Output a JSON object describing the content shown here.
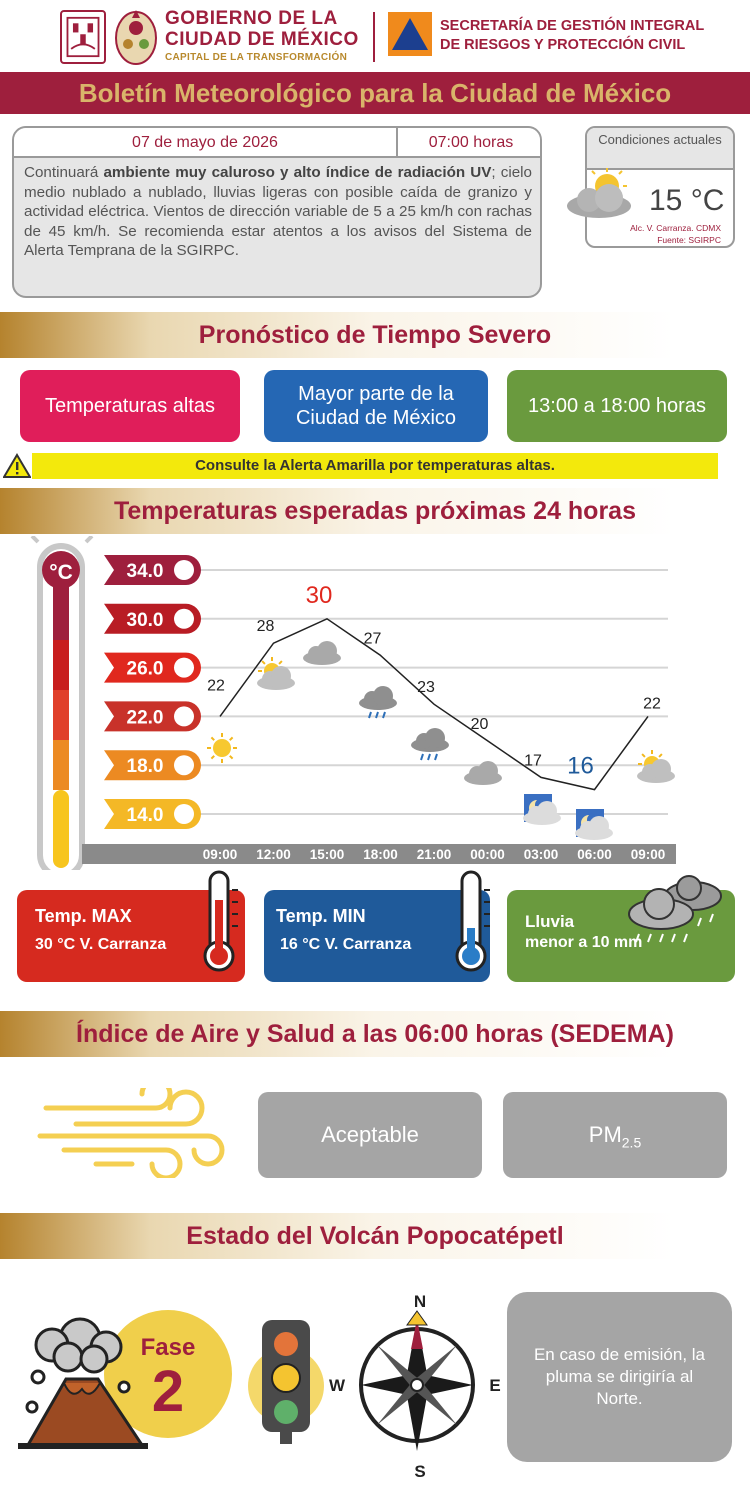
{
  "header": {
    "gov_line1": "GOBIERNO DE LA",
    "gov_line2": "CIUDAD DE MÉXICO",
    "gov_tagline": "CAPITAL DE LA TRANSFORMACIÓN",
    "sec_line1": "SECRETARÍA DE GESTIÓN INTEGRAL",
    "sec_line2": "DE RIESGOS Y PROTECCIÓN CIVIL"
  },
  "title": "Boletín Meteorológico para la Ciudad de México",
  "bulletin": {
    "date": "07 de mayo de 2026",
    "time": "07:00 horas",
    "text_1": "Continuará ",
    "text_bold_1": "ambiente muy caluroso y alto índice de radiación UV",
    "text_2": "; cielo medio nublado a nublado, lluvias ligeras con posible caída de granizo y actividad eléctrica. Vientos de dirección variable de 5 a 25 km/h con rachas de 45 km/h. Se recomienda estar atentos a los avisos del Sistema de Alerta Temprana de la SGIRPC."
  },
  "current": {
    "title": "Condiciones actuales",
    "temp": "15 °C",
    "location": "Alc. V. Carranza. CDMX",
    "source": "Fuente: SGIRPC"
  },
  "severe": {
    "heading": "Pronóstico de Tiempo Severo",
    "phenomenon": "Temperaturas altas",
    "area": "Mayor parte de la Ciudad de México",
    "hours": "13:00 a 18:00 horas",
    "alert": "Consulte la Alerta Amarilla por temperaturas altas."
  },
  "temps_heading": "Temperaturas esperadas próximas 24 horas",
  "chart_data": {
    "type": "line",
    "unit_symbol": "°C",
    "x": [
      "09:00",
      "12:00",
      "15:00",
      "18:00",
      "21:00",
      "00:00",
      "03:00",
      "06:00",
      "09:00"
    ],
    "y_ticks": [
      "34.0",
      "30.0",
      "26.0",
      "22.0",
      "18.0",
      "14.0"
    ],
    "y_tick_values": [
      34,
      30,
      26,
      22,
      18,
      14
    ],
    "ylim": [
      14,
      34
    ],
    "series": [
      {
        "values": [
          22,
          28,
          30,
          27,
          23,
          20,
          17,
          16,
          22
        ]
      }
    ],
    "labels": [
      "22",
      "28",
      "30",
      "27",
      "23",
      "20",
      "17",
      "16",
      "22"
    ],
    "max_index": 2,
    "min_index": 7,
    "icons": [
      "sun-icon",
      "sun-cloud-icon",
      "cloud-icon",
      "rain-cloud-icon",
      "rain-cloud-icon",
      "cloud-icon",
      "moon-icon",
      "moon-icon",
      "sun-cloud-icon"
    ],
    "colors": {
      "line": "#222222",
      "max_label": "#e0281e",
      "min_label": "#1f5a9a"
    }
  },
  "stats": {
    "max_title": "Temp. MAX",
    "max_value": "30 °C  V. Carranza",
    "min_title": "Temp. MIN",
    "min_value": "16 °C  V. Carranza",
    "rain_title": "Lluvia",
    "rain_value": "menor a 10 mm"
  },
  "air": {
    "heading": "Índice de Aire y Salud a las 06:00 horas (SEDEMA)",
    "quality": "Aceptable",
    "pollutant_main": "PM",
    "pollutant_sub": "2.5"
  },
  "volcano": {
    "heading": "Estado del Volcán Popocatépetl",
    "phase_label": "Fase",
    "phase_number": "2",
    "compass": {
      "n": "N",
      "s": "S",
      "e": "E",
      "w": "W"
    },
    "emission_text": "En caso de emisión, la pluma se dirigiría al Norte."
  },
  "colors": {
    "brand": "#9e1f3d",
    "gold": "#d9b46a",
    "pink": "#e01e5a",
    "blue": "#2567b4",
    "green": "#6a9a3e",
    "max_red": "#d62a1f",
    "min_blue": "#1f5a9a",
    "alert_yellow": "#f3e90c"
  }
}
